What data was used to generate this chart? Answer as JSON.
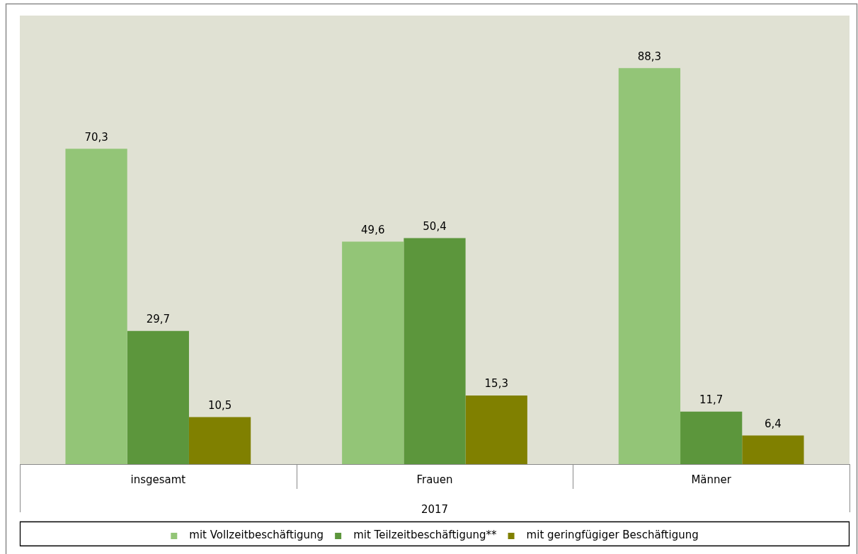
{
  "chart_data": {
    "type": "bar",
    "xlabel": "2017",
    "categories": [
      "insgesamt",
      "Frauen",
      "Männer"
    ],
    "ylim": [
      0,
      100
    ],
    "legend": "bottom",
    "grid": false,
    "series": [
      {
        "name": "mit Vollzeitbeschäftigung",
        "color": "#93c577",
        "values": [
          70.3,
          49.6,
          88.3
        ],
        "value_labels": [
          "70,3",
          "49,6",
          "88,3"
        ]
      },
      {
        "name": "mit Teilzeitbeschäftigung**",
        "color": "#5c963c",
        "values": [
          29.7,
          50.4,
          11.7
        ],
        "value_labels": [
          "29,7",
          "50,4",
          "11,7"
        ]
      },
      {
        "name": "mit geringfügiger Beschäftigung",
        "color": "#808000",
        "values": [
          10.5,
          15.3,
          6.4
        ],
        "value_labels": [
          "10,5",
          "15,3",
          "6,4"
        ]
      }
    ]
  }
}
